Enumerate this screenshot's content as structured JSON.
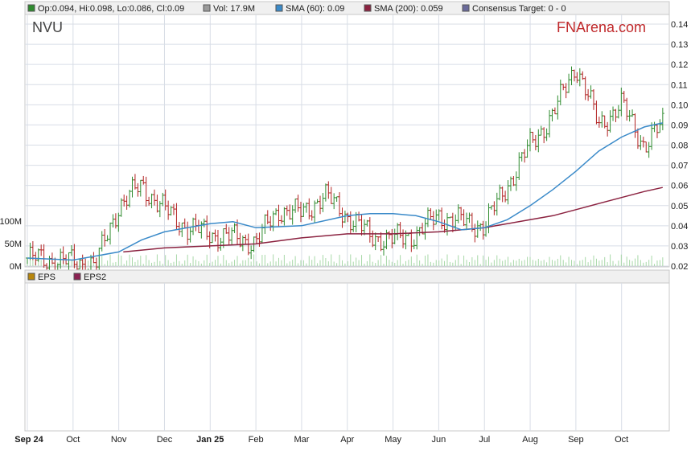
{
  "legend": {
    "ohlc": "Op:0.094, Hi:0.098, Lo:0.086, Cl:0.09",
    "volume": "Vol: 17.9M",
    "sma60": "SMA (60): 0.09",
    "sma200": "SMA (200): 0.059",
    "consensus": "Consensus Target: 0 - 0",
    "eps": "EPS",
    "eps2": "EPS2"
  },
  "ticker": "NVU",
  "brand": "FNArena.com",
  "colors": {
    "up": "#2e8b2e",
    "down": "#b22222",
    "sma60": "#3a8ac9",
    "sma200": "#8b2240",
    "volume": "#a8d8a8",
    "grid": "#d8dde6",
    "eps_swatch": "#b8860b",
    "eps2_swatch": "#8b2252",
    "consensus_swatch": "#6a6a9a"
  },
  "chart_data": {
    "type": "line",
    "price_axis": {
      "ylim": [
        0.02,
        0.14
      ],
      "ticks": [
        "0.14",
        "0.13",
        "0.12",
        "0.11",
        "0.10",
        "0.09",
        "0.08",
        "0.07",
        "0.06",
        "0.05",
        "0.04",
        "0.03",
        "0.02"
      ]
    },
    "volume_axis": {
      "ticks": [
        "100M",
        "50M",
        "0M"
      ],
      "ylim": [
        0,
        100
      ]
    },
    "months": [
      {
        "label": "Sep 24",
        "bold": true
      },
      {
        "label": "Oct",
        "bold": false
      },
      {
        "label": "Nov",
        "bold": false
      },
      {
        "label": "Dec",
        "bold": false
      },
      {
        "label": "Jan 25",
        "bold": true
      },
      {
        "label": "Feb",
        "bold": false
      },
      {
        "label": "Mar",
        "bold": false
      },
      {
        "label": "Apr",
        "bold": false
      },
      {
        "label": "May",
        "bold": false
      },
      {
        "label": "Jun",
        "bold": false
      },
      {
        "label": "Jul",
        "bold": false
      },
      {
        "label": "Aug",
        "bold": false
      },
      {
        "label": "Sep",
        "bold": false
      },
      {
        "label": "Oct",
        "bold": false
      }
    ],
    "price_series": {
      "name": "NVU",
      "x": [
        0,
        0.5,
        1,
        1.5,
        2,
        2.5,
        3,
        3.5,
        4,
        4.5,
        5,
        5.5,
        6,
        6.5,
        7,
        7.5,
        8,
        8.5,
        9,
        9.5,
        10,
        10.5,
        11,
        11.5,
        12,
        12.5,
        13,
        13.5,
        13.9
      ],
      "close": [
        0.024,
        0.023,
        0.022,
        0.021,
        0.05,
        0.06,
        0.048,
        0.039,
        0.036,
        0.034,
        0.032,
        0.048,
        0.046,
        0.055,
        0.045,
        0.035,
        0.033,
        0.036,
        0.045,
        0.042,
        0.04,
        0.06,
        0.08,
        0.095,
        0.12,
        0.09,
        0.1,
        0.08,
        0.09
      ]
    },
    "sma60": {
      "name": "SMA (60)",
      "x": [
        0,
        1,
        2,
        2.5,
        3,
        3.5,
        4,
        4.5,
        5,
        6,
        7,
        7.5,
        8,
        8.5,
        9,
        9.5,
        10,
        10.5,
        11,
        11.5,
        12,
        12.5,
        13,
        13.5,
        13.9
      ],
      "values": [
        0.024,
        0.023,
        0.027,
        0.033,
        0.037,
        0.039,
        0.041,
        0.042,
        0.039,
        0.04,
        0.045,
        0.046,
        0.046,
        0.045,
        0.042,
        0.038,
        0.039,
        0.043,
        0.05,
        0.058,
        0.067,
        0.077,
        0.084,
        0.089,
        0.091
      ]
    },
    "sma200": {
      "name": "SMA (200)",
      "x": [
        2.1,
        3,
        4,
        5,
        6,
        7,
        8,
        9,
        10,
        10.5,
        11,
        11.5,
        12,
        12.5,
        13,
        13.5,
        13.9
      ],
      "values": [
        0.027,
        0.029,
        0.03,
        0.031,
        0.034,
        0.036,
        0.036,
        0.037,
        0.039,
        0.041,
        0.043,
        0.045,
        0.048,
        0.051,
        0.054,
        0.057,
        0.059
      ]
    }
  }
}
